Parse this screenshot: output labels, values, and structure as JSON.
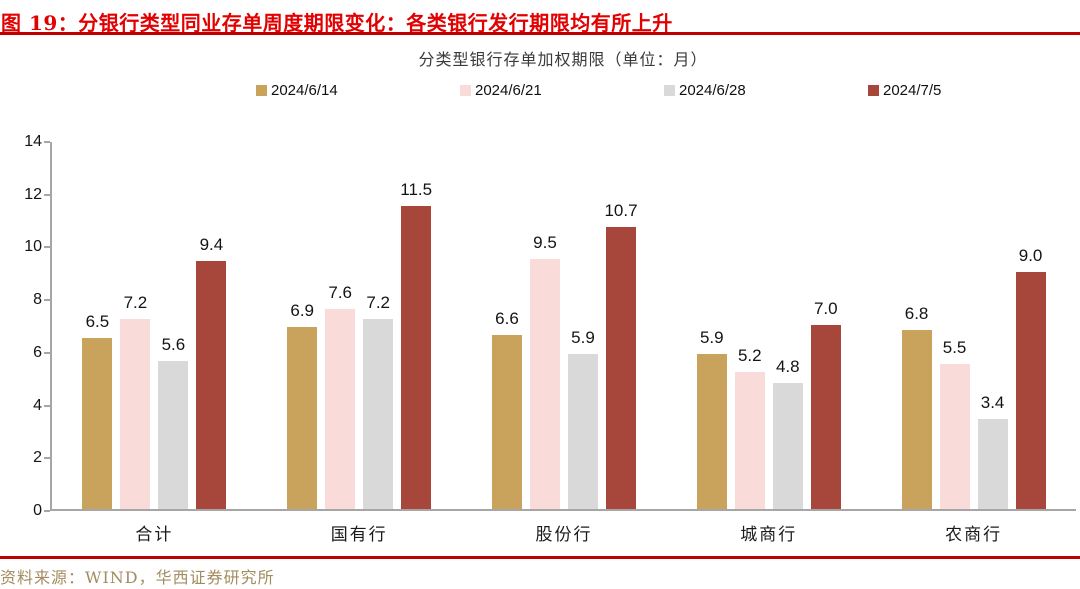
{
  "page": {
    "title": "图 19：分银行类型同业存单周度期限变化：各类银行发行期限均有所上升",
    "footer": "资料来源：WIND，华西证券研究所"
  },
  "colors": {
    "title_red": "#e20000",
    "rule_red": "#c00000",
    "axis_gray": "#a6a6a6",
    "footer_gold": "#a38c5f"
  },
  "chart_data": {
    "type": "bar",
    "title": "分类型银行存单加权期限（单位：月）",
    "categories": [
      "合计",
      "国有行",
      "股份行",
      "城商行",
      "农商行"
    ],
    "series": [
      {
        "name": "2024/6/14",
        "color": "#c9a35c",
        "values": [
          6.5,
          6.9,
          6.6,
          5.9,
          6.8
        ]
      },
      {
        "name": "2024/6/21",
        "color": "#f9dbda",
        "values": [
          7.2,
          7.6,
          9.5,
          5.2,
          5.5
        ]
      },
      {
        "name": "2024/6/28",
        "color": "#d9d9d9",
        "values": [
          5.6,
          7.2,
          5.9,
          4.8,
          3.4
        ]
      },
      {
        "name": "2024/7/5",
        "color": "#a7463a",
        "values": [
          9.4,
          11.5,
          10.7,
          7.0,
          9.0
        ]
      }
    ],
    "ylim": [
      0,
      14
    ],
    "ytick_step": 2,
    "grid": false,
    "legend_position": "top",
    "value_label_decimals": 1
  }
}
